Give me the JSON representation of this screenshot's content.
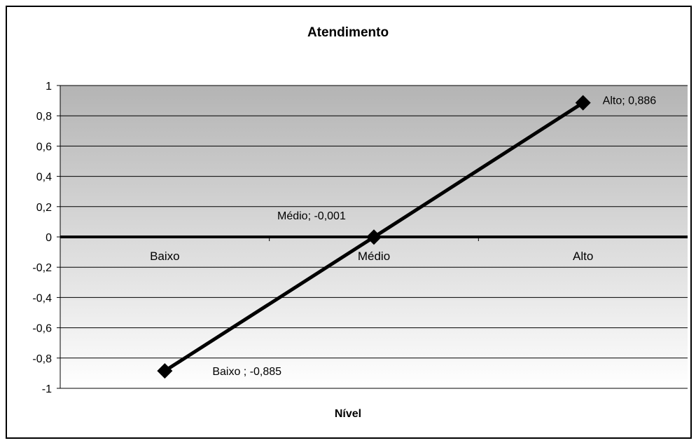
{
  "chart_data": {
    "type": "line",
    "title": "Atendimento",
    "xlabel": "Nível",
    "ylabel": "",
    "categories": [
      "Baixo",
      "Médio",
      "Alto"
    ],
    "series": [
      {
        "values": [
          -0.885,
          -0.001,
          0.886
        ],
        "data_labels": [
          "Baixo  ; -0,885",
          "Médio; -0,001",
          "Alto; 0,886"
        ]
      }
    ],
    "ylim": [
      -1,
      1
    ],
    "y_ticks": [
      1,
      0.8,
      0.6,
      0.4,
      0.2,
      0,
      -0.2,
      -0.4,
      -0.6,
      -0.8,
      -1
    ],
    "y_tick_labels": [
      "1",
      "0,8",
      "0,6",
      "0,4",
      "0,2",
      "0",
      "-0,2",
      "-0,4",
      "-0,6",
      "-0,8",
      "-1"
    ],
    "grid": true,
    "marker": "diamond",
    "colors": {
      "line": "#000000",
      "gradient_top": "#b4b4b4",
      "gradient_bottom": "#ffffff"
    }
  }
}
